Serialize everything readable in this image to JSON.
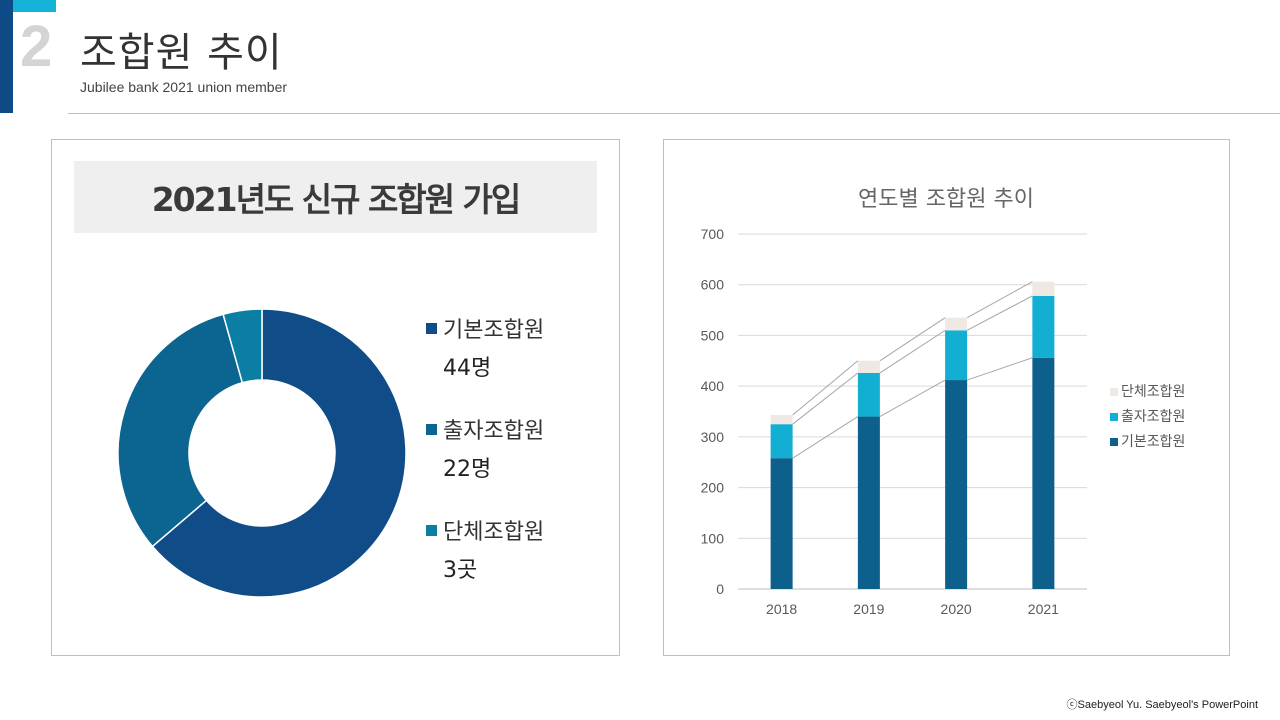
{
  "header": {
    "slide_number": "2",
    "title": "조합원 추이",
    "subtitle": "Jubilee bank 2021 union member"
  },
  "left_panel": {
    "heading": "2021년도 신규 조합원 가입",
    "legend": [
      {
        "label": "기본조합원",
        "value": "44명"
      },
      {
        "label": "출자조합원",
        "value": "22명"
      },
      {
        "label": "단체조합원",
        "value": "3곳"
      }
    ]
  },
  "right_panel": {
    "title": "연도별 조합원 추이"
  },
  "colors": {
    "basic": "#0f4c88",
    "investor": "#0c6591",
    "group": "#0a7fa3",
    "bar_basic": "#0d5f8c",
    "bar_investor": "#12afd2",
    "bar_group": "#efe8e3",
    "accent_dark": "#0e4a86",
    "accent_light": "#12b3d6"
  },
  "chart_data": [
    {
      "type": "pie",
      "donut": true,
      "categories": [
        "기본조합원",
        "출자조합원",
        "단체조합원"
      ],
      "values": [
        44,
        22,
        3
      ],
      "value_labels": [
        "44명",
        "22명",
        "3곳"
      ],
      "legend_position": "right"
    },
    {
      "type": "bar",
      "stacked": true,
      "title": "연도별 조합원 추이",
      "categories": [
        "2018",
        "2019",
        "2020",
        "2021"
      ],
      "series": [
        {
          "name": "기본조합원",
          "values": [
            258,
            340,
            412,
            456
          ]
        },
        {
          "name": "출자조합원",
          "values": [
            67,
            86,
            98,
            122
          ]
        },
        {
          "name": "단체조합원",
          "values": [
            18,
            24,
            25,
            28
          ]
        }
      ],
      "ylim": [
        0,
        700
      ],
      "yticks": [
        0,
        100,
        200,
        300,
        400,
        500,
        600,
        700
      ],
      "grid": true,
      "series_lines": true,
      "legend_position": "right"
    }
  ],
  "footer": {
    "credit": "ⓒSaebyeol Yu.  Saebyeol's PowerPoint"
  }
}
